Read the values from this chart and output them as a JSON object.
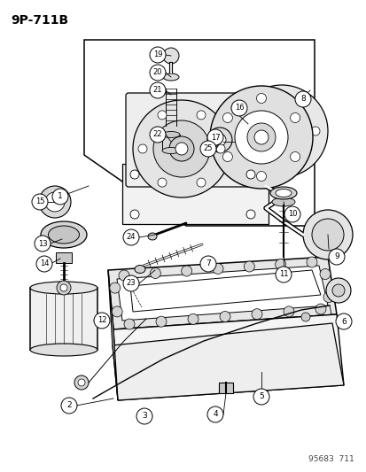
{
  "title": "9P-711B",
  "watermark": "95683  711",
  "bg_color": "#ffffff",
  "line_color": "#000000",
  "lw": 1.0,
  "title_fontsize": 10,
  "label_fontsize": 6.5,
  "watermark_fontsize": 6.5
}
